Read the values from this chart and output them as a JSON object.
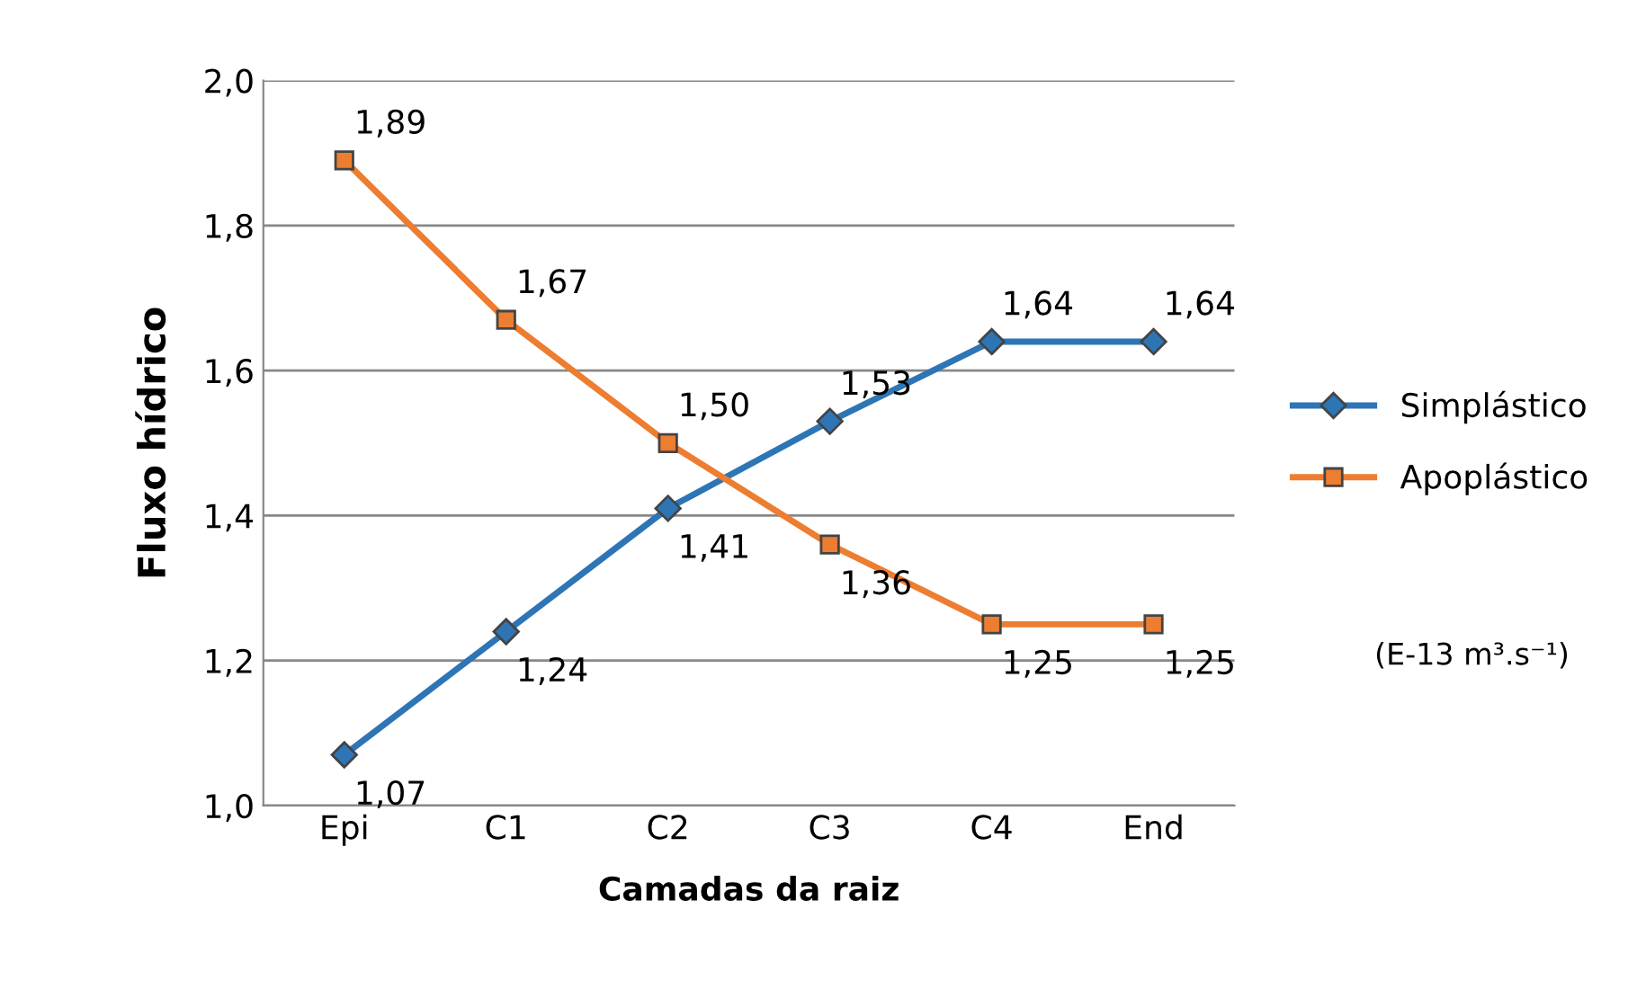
{
  "chart_data": {
    "type": "line",
    "xlabel": "Camadas da raiz",
    "ylabel": "Fluxo hídrico",
    "categories": [
      "Epi",
      "C1",
      "C2",
      "C3",
      "C4",
      "End"
    ],
    "series": [
      {
        "name": "Simplástico",
        "color": "#2e75b6",
        "marker": "diamond",
        "values": [
          1.07,
          1.24,
          1.41,
          1.53,
          1.64,
          1.64
        ],
        "value_labels": [
          "1,07",
          "1,24",
          "1,41",
          "1,53",
          "1,64",
          "1,64"
        ]
      },
      {
        "name": "Apoplástico",
        "color": "#ed7d31",
        "marker": "square",
        "values": [
          1.89,
          1.67,
          1.5,
          1.36,
          1.25,
          1.25
        ],
        "value_labels": [
          "1,89",
          "1,67",
          "1,50",
          "1,36",
          "1,25",
          "1,25"
        ]
      }
    ],
    "ylim": [
      1.0,
      2.0
    ],
    "yticks": [
      {
        "value": 1.0,
        "label": "1,0"
      },
      {
        "value": 1.2,
        "label": "1,2"
      },
      {
        "value": 1.4,
        "label": "1,4"
      },
      {
        "value": 1.6,
        "label": "1,6"
      },
      {
        "value": 1.8,
        "label": "1,8"
      },
      {
        "value": 2.0,
        "label": "2,0"
      }
    ],
    "grid": "y",
    "legend": "right",
    "line_style": "solid",
    "annotations": [
      "(E-13 m³.s⁻¹)"
    ]
  }
}
